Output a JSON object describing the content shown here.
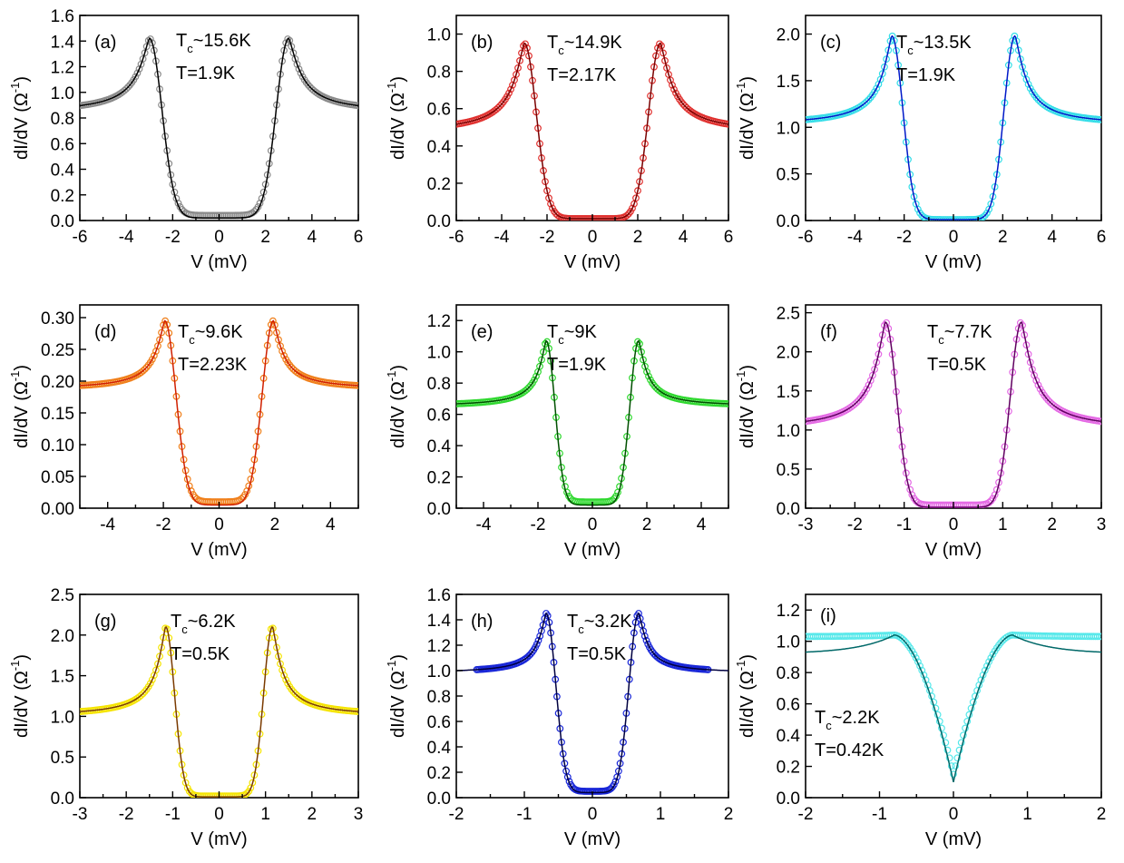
{
  "figure": {
    "xlabel": "V (mV)",
    "ylabel_prefix": "dI/dV (",
    "ylabel_unit": "Ω",
    "ylabel_exp": "-1",
    "ylabel_suffix": ")"
  },
  "chart_data": [
    {
      "type": "line",
      "panel_label": "(a)",
      "tc_value": "~15.6K",
      "t_text": "T=1.9K",
      "xlim": [
        -6,
        6
      ],
      "ylim": [
        0,
        1.6
      ],
      "xticks": [
        -6,
        -4,
        -2,
        0,
        2,
        4,
        6
      ],
      "xtick_labels": [
        "-6",
        "-4",
        "-2",
        "0",
        "2",
        "4",
        "6"
      ],
      "yticks": [
        0,
        0.2,
        0.4,
        0.6,
        0.8,
        1.0,
        1.2,
        1.4,
        1.6
      ],
      "ytick_labels": [
        "0.0",
        "0.2",
        "0.4",
        "0.6",
        "0.8",
        "1.0",
        "1.2",
        "1.4",
        "1.6"
      ],
      "data_color": "#8a8a8a",
      "fit_color": "#000000",
      "gap": 3.0,
      "peak": 1.42,
      "base": 0.84,
      "floor": 0.02,
      "edge": 0.45,
      "data_floor": 0.04
    },
    {
      "type": "line",
      "panel_label": "(b)",
      "tc_value": "~14.9K",
      "t_text": "T=2.17K",
      "xlim": [
        -6,
        6
      ],
      "ylim": [
        0,
        1.1
      ],
      "xticks": [
        -6,
        -4,
        -2,
        0,
        2,
        4,
        6
      ],
      "xtick_labels": [
        "-6",
        "-4",
        "-2",
        "0",
        "2",
        "4",
        "6"
      ],
      "yticks": [
        0,
        0.2,
        0.4,
        0.6,
        0.8,
        1.0
      ],
      "ytick_labels": [
        "0.0",
        "0.2",
        "0.4",
        "0.6",
        "0.8",
        "1.0"
      ],
      "data_color": "#e0302e",
      "fit_color": "#7a0000",
      "gap": 3.0,
      "peak": 0.95,
      "base": 0.47,
      "floor": 0.01,
      "edge": 0.38,
      "data_floor": 0.01
    },
    {
      "type": "line",
      "panel_label": "(c)",
      "tc_value": "~13.5K",
      "t_text": "T=1.9K",
      "xlim": [
        -6,
        6
      ],
      "ylim": [
        0,
        2.2
      ],
      "xticks": [
        -6,
        -4,
        -2,
        0,
        2,
        4,
        6
      ],
      "xtick_labels": [
        "-6",
        "-4",
        "-2",
        "0",
        "2",
        "4",
        "6"
      ],
      "yticks": [
        0,
        0.5,
        1.0,
        1.5,
        2.0
      ],
      "ytick_labels": [
        "0.0",
        "0.5",
        "1.0",
        "1.5",
        "2.0"
      ],
      "data_color": "#33dde8",
      "fit_color": "#0018c8",
      "gap": 2.5,
      "peak": 1.98,
      "base": 1.02,
      "floor": 0.01,
      "edge": 0.35,
      "data_floor": 0.01
    },
    {
      "type": "line",
      "panel_label": "(d)",
      "tc_value": "~9.6K",
      "t_text": "T=2.23K",
      "xlim": [
        -5,
        5
      ],
      "ylim": [
        0,
        0.32
      ],
      "xticks": [
        -4,
        -2,
        0,
        2,
        4
      ],
      "xtick_labels": [
        "-4",
        "-2",
        "0",
        "2",
        "4"
      ],
      "yticks": [
        0,
        0.05,
        0.1,
        0.15,
        0.2,
        0.25,
        0.3
      ],
      "ytick_labels": [
        "0.00",
        "0.05",
        "0.10",
        "0.15",
        "0.20",
        "0.25",
        "0.30"
      ],
      "data_color": "#f07f1a",
      "fit_color": "#d02000",
      "gap": 1.95,
      "peak": 0.295,
      "base": 0.187,
      "floor": 0.005,
      "edge": 0.55,
      "data_floor": 0.01
    },
    {
      "type": "line",
      "panel_label": "(e)",
      "tc_value": "~9K",
      "t_text": "T=1.9K",
      "xlim": [
        -5,
        5
      ],
      "ylim": [
        0,
        1.3
      ],
      "xticks": [
        -4,
        -2,
        0,
        2,
        4
      ],
      "xtick_labels": [
        "-4",
        "-2",
        "0",
        "2",
        "4"
      ],
      "yticks": [
        0,
        0.2,
        0.4,
        0.6,
        0.8,
        1.0,
        1.2
      ],
      "ytick_labels": [
        "0.0",
        "0.2",
        "0.4",
        "0.6",
        "0.8",
        "1.0",
        "1.2"
      ],
      "data_color": "#2ed82e",
      "fit_color": "#005000",
      "gap": 1.7,
      "peak": 1.07,
      "base": 0.65,
      "floor": 0.02,
      "edge": 0.35,
      "data_floor": 0.04
    },
    {
      "type": "line",
      "panel_label": "(f)",
      "tc_value": "~7.7K",
      "t_text": "T=0.5K",
      "xlim": [
        -3,
        3
      ],
      "ylim": [
        0,
        2.6
      ],
      "xticks": [
        -3,
        -2,
        -1,
        0,
        1,
        2,
        3
      ],
      "xtick_labels": [
        "-3",
        "-2",
        "-1",
        "0",
        "1",
        "2",
        "3"
      ],
      "yticks": [
        0,
        0.5,
        1.0,
        1.5,
        2.0,
        2.5
      ],
      "ytick_labels": [
        "0.0",
        "0.5",
        "1.0",
        "1.5",
        "2.0",
        "2.5"
      ],
      "data_color": "#e468e4",
      "fit_color": "#600060",
      "gap": 1.38,
      "peak": 2.38,
      "base": 1.0,
      "floor": 0.01,
      "edge": 0.1,
      "data_floor": 0.04
    },
    {
      "type": "line",
      "panel_label": "(g)",
      "tc_value": "~6.2K",
      "t_text": "T=0.5K",
      "xlim": [
        -3,
        3
      ],
      "ylim": [
        0,
        2.5
      ],
      "xticks": [
        -3,
        -2,
        -1,
        0,
        1,
        2,
        3
      ],
      "xtick_labels": [
        "-3",
        "-2",
        "-1",
        "0",
        "1",
        "2",
        "3"
      ],
      "yticks": [
        0,
        0.5,
        1.0,
        1.5,
        2.0,
        2.5
      ],
      "ytick_labels": [
        "0.0",
        "0.5",
        "1.0",
        "1.5",
        "2.0",
        "2.5"
      ],
      "data_color": "#f5e400",
      "fit_color": "#7a3a00",
      "gap": 1.15,
      "peak": 2.1,
      "base": 1.0,
      "floor": 0.01,
      "edge": 0.1,
      "data_floor": 0.02
    },
    {
      "type": "line",
      "panel_label": "(h)",
      "tc_value": "~3.2K",
      "t_text": "T=0.5K",
      "xlim": [
        -2,
        2
      ],
      "ylim": [
        0,
        1.6
      ],
      "xticks": [
        -2,
        -1,
        0,
        1,
        2
      ],
      "xtick_labels": [
        "-2",
        "-1",
        "0",
        "1",
        "2"
      ],
      "yticks": [
        0,
        0.2,
        0.4,
        0.6,
        0.8,
        1.0,
        1.2,
        1.4,
        1.6
      ],
      "ytick_labels": [
        "0.0",
        "0.2",
        "0.4",
        "0.6",
        "0.8",
        "1.0",
        "1.2",
        "1.4",
        "1.6"
      ],
      "data_color": "#1826d8",
      "fit_color": "#000040",
      "gap": 0.68,
      "peak": 1.45,
      "base": 0.98,
      "floor": 0.04,
      "edge": 0.2,
      "data_floor": 0.05,
      "data_range": 1.7
    },
    {
      "type": "line",
      "panel_label": "(i)",
      "tc_value": "~2.2K",
      "t_text": "T=0.42K",
      "xlim": [
        -2,
        2
      ],
      "ylim": [
        0,
        1.3
      ],
      "xticks": [
        -2,
        -1,
        0,
        1,
        2
      ],
      "xtick_labels": [
        "-2",
        "-1",
        "0",
        "1",
        "2"
      ],
      "yticks": [
        0,
        0.2,
        0.4,
        0.6,
        0.8,
        1.0,
        1.2
      ],
      "ytick_labels": [
        "0.0",
        "0.2",
        "0.4",
        "0.6",
        "0.8",
        "1.0",
        "1.2"
      ],
      "data_color": "#55e8ea",
      "fit_color": "#006868",
      "gap": 0.8,
      "peak": 1.04,
      "base": 0.92,
      "floor": 0.1,
      "edge": 0.35,
      "data_floor": 0.15,
      "data_base": 1.03,
      "broad": true
    }
  ]
}
